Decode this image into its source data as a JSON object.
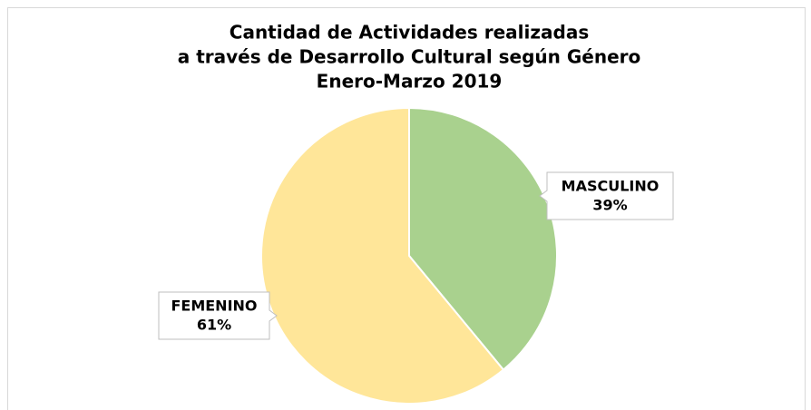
{
  "chart_data": {
    "type": "pie",
    "title": [
      "Cantidad de Actividades realizadas",
      "a través de Desarrollo Cultural según Género",
      "Enero-Marzo 2019"
    ],
    "categories": [
      "MASCULINO",
      "FEMENINO"
    ],
    "values": [
      39,
      61
    ],
    "value_labels": [
      "39%",
      "61%"
    ],
    "colors": [
      "#a9d18e",
      "#ffe699"
    ]
  }
}
